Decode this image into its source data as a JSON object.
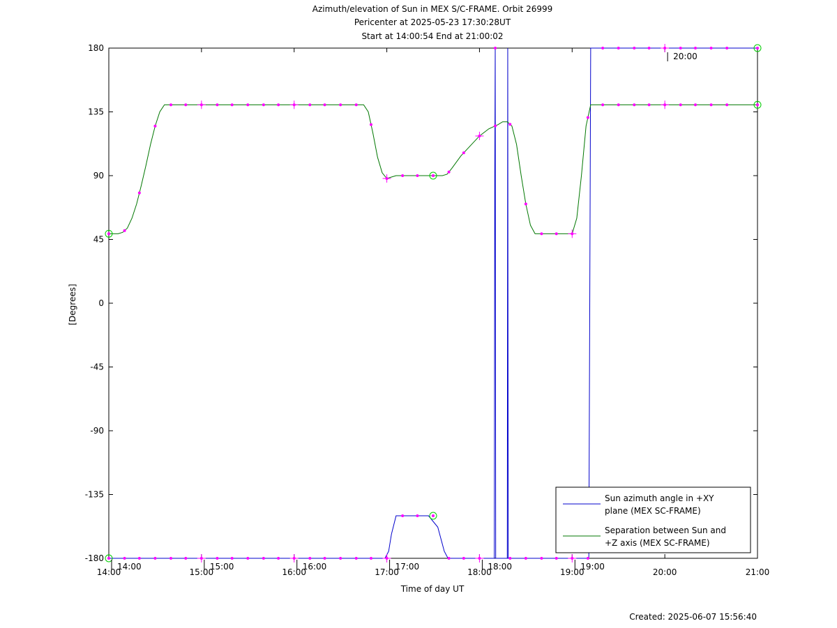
{
  "chart_data": {
    "type": "line",
    "title_lines": [
      "Azimuth/elevation of Sun in MEX S/C-FRAME.  Orbit 26999",
      "Pericenter at 2025-05-23 17:30:28UT",
      "Start at 14:00:54 End at 21:00:02"
    ],
    "xlabel": "Time of day UT",
    "ylabel": "[Degrees]",
    "xlim": [
      14.0,
      21.0
    ],
    "ylim": [
      -180,
      180
    ],
    "x_ticks": [
      {
        "value": 14,
        "label": "14:00"
      },
      {
        "value": 15,
        "label": "15:00"
      },
      {
        "value": 16,
        "label": "16:00"
      },
      {
        "value": 17,
        "label": "17:00"
      },
      {
        "value": 18,
        "label": "18:00"
      },
      {
        "value": 19,
        "label": "19:00"
      },
      {
        "value": 20,
        "label": "20:00"
      },
      {
        "value": 21,
        "label": "21:00"
      }
    ],
    "y_ticks": [
      {
        "value": 180,
        "label": "180"
      },
      {
        "value": 135,
        "label": "135"
      },
      {
        "value": 90,
        "label": "90"
      },
      {
        "value": 45,
        "label": "45"
      },
      {
        "value": 0,
        "label": "0"
      },
      {
        "value": -45,
        "label": "-45"
      },
      {
        "value": -90,
        "label": "-90"
      },
      {
        "value": -135,
        "label": "-135"
      },
      {
        "value": -180,
        "label": "-180"
      }
    ],
    "hour_markers": [
      {
        "value": 14.0,
        "y": -180,
        "label": "14:00"
      },
      {
        "value": 15.0,
        "y": -180,
        "label": "15:00"
      },
      {
        "value": 16.0,
        "y": -180,
        "label": "16:00"
      },
      {
        "value": 17.0,
        "y": -180,
        "label": "17:00"
      },
      {
        "value": 18.0,
        "y": -180,
        "label": "18:00"
      },
      {
        "value": 19.0,
        "y": -180,
        "label": "19:00"
      },
      {
        "value": 20.0,
        "y": 180,
        "label": "20:00"
      }
    ],
    "series": [
      {
        "name": "Sun azimuth angle in +XY plane (MEX SC-FRAME)",
        "legend_lines": [
          "Sun azimuth angle in +XY",
          "plane (MEX SC-FRAME)"
        ],
        "color": "#0000cc",
        "points": [
          [
            14.0,
            -180
          ],
          [
            16.98,
            -180
          ],
          [
            17.02,
            -175
          ],
          [
            17.05,
            -163
          ],
          [
            17.1,
            -150
          ],
          [
            17.2,
            -150
          ],
          [
            17.45,
            -150
          ],
          [
            17.55,
            -158
          ],
          [
            17.62,
            -175
          ],
          [
            17.66,
            -180
          ],
          [
            18.16,
            -180
          ],
          [
            18.165,
            90
          ],
          [
            18.17,
            180
          ],
          [
            18.175,
            -180
          ],
          [
            18.3,
            -180
          ],
          [
            18.305,
            180
          ],
          [
            18.31,
            -180
          ],
          [
            19.18,
            -180
          ],
          [
            19.19,
            0
          ],
          [
            19.2,
            180
          ],
          [
            21.0,
            180
          ]
        ],
        "markers": [
          14.0,
          14.17,
          14.33,
          14.5,
          14.67,
          14.83,
          15.0,
          15.17,
          15.33,
          15.5,
          15.67,
          15.83,
          16.0,
          16.17,
          16.33,
          16.5,
          16.67,
          16.83,
          17.0,
          17.17,
          17.33,
          17.5,
          17.67,
          17.83,
          18.0,
          18.17,
          18.33,
          18.5,
          18.67,
          18.83,
          19.0,
          19.17,
          19.33,
          19.5,
          19.67,
          19.83,
          20.0,
          20.17,
          20.33,
          20.5,
          20.67,
          21.0
        ],
        "circles": [
          [
            14.0,
            -180
          ],
          [
            17.5,
            -150
          ],
          [
            21.0,
            180
          ]
        ]
      },
      {
        "name": "Separation between Sun and +Z axis (MEX SC-FRAME)",
        "legend_lines": [
          "Separation between Sun and",
          "+Z axis (MEX SC-FRAME)"
        ],
        "color": "#007700",
        "points": [
          [
            14.0,
            49
          ],
          [
            14.1,
            49
          ],
          [
            14.15,
            50
          ],
          [
            14.2,
            53
          ],
          [
            14.25,
            60
          ],
          [
            14.3,
            70
          ],
          [
            14.35,
            83
          ],
          [
            14.4,
            97
          ],
          [
            14.45,
            112
          ],
          [
            14.5,
            125
          ],
          [
            14.55,
            135
          ],
          [
            14.6,
            140
          ],
          [
            16.75,
            140
          ],
          [
            16.8,
            135
          ],
          [
            16.85,
            120
          ],
          [
            16.9,
            103
          ],
          [
            16.95,
            92
          ],
          [
            17.0,
            88
          ],
          [
            17.05,
            89
          ],
          [
            17.1,
            90
          ],
          [
            17.6,
            90
          ],
          [
            17.65,
            91
          ],
          [
            17.7,
            95
          ],
          [
            17.8,
            104
          ],
          [
            17.9,
            111
          ],
          [
            18.0,
            118
          ],
          [
            18.1,
            123
          ],
          [
            18.2,
            126
          ],
          [
            18.25,
            128
          ],
          [
            18.3,
            128
          ],
          [
            18.35,
            125
          ],
          [
            18.4,
            112
          ],
          [
            18.45,
            90
          ],
          [
            18.5,
            70
          ],
          [
            18.55,
            55
          ],
          [
            18.6,
            49
          ],
          [
            19.0,
            49
          ],
          [
            19.05,
            60
          ],
          [
            19.1,
            90
          ],
          [
            19.15,
            125
          ],
          [
            19.2,
            140
          ],
          [
            21.0,
            140
          ]
        ],
        "markers": [
          14.0,
          14.17,
          14.33,
          14.5,
          14.67,
          14.83,
          15.0,
          15.17,
          15.33,
          15.5,
          15.67,
          15.83,
          16.0,
          16.17,
          16.33,
          16.5,
          16.67,
          16.83,
          17.0,
          17.17,
          17.33,
          17.5,
          17.67,
          17.83,
          18.0,
          18.17,
          18.33,
          18.5,
          18.67,
          18.83,
          19.0,
          19.17,
          19.33,
          19.5,
          19.67,
          19.83,
          20.0,
          20.17,
          20.33,
          20.5,
          20.67,
          21.0
        ],
        "circles": [
          [
            14.0,
            49
          ],
          [
            17.5,
            90
          ],
          [
            21.0,
            140
          ]
        ]
      }
    ],
    "marker_color": "#ff00ff",
    "circle_color": "#00cc00",
    "legend_position": "bottom-right",
    "grid": false
  },
  "footer": {
    "created": "Created: 2025-06-07 15:56:40"
  }
}
